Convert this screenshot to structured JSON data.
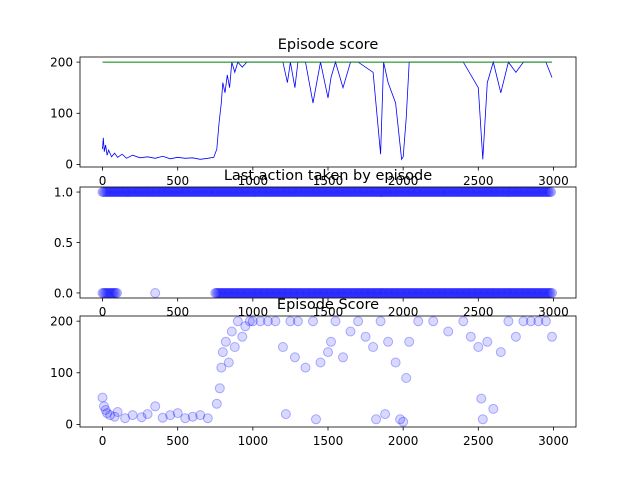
{
  "chart_data": [
    {
      "type": "line",
      "title": "Episode score",
      "xlabel": "",
      "ylabel": "",
      "xlim": [
        -150,
        3150
      ],
      "ylim": [
        -5,
        210
      ],
      "xticks": [
        0,
        500,
        1000,
        1500,
        2000,
        2500,
        3000
      ],
      "yticks": [
        0,
        100,
        200
      ],
      "grid": false,
      "series": [
        {
          "color": "#0000ff",
          "points": [
            [
              0,
              30
            ],
            [
              5,
              52
            ],
            [
              12,
              25
            ],
            [
              20,
              38
            ],
            [
              30,
              18
            ],
            [
              40,
              28
            ],
            [
              60,
              15
            ],
            [
              80,
              22
            ],
            [
              100,
              14
            ],
            [
              130,
              20
            ],
            [
              160,
              12
            ],
            [
              200,
              18
            ],
            [
              250,
              13
            ],
            [
              300,
              15
            ],
            [
              350,
              12
            ],
            [
              400,
              16
            ],
            [
              450,
              11
            ],
            [
              500,
              14
            ],
            [
              550,
              12
            ],
            [
              600,
              13
            ],
            [
              650,
              10
            ],
            [
              700,
              12
            ],
            [
              740,
              14
            ],
            [
              760,
              30
            ],
            [
              775,
              80
            ],
            [
              790,
              120
            ],
            [
              800,
              160
            ],
            [
              815,
              140
            ],
            [
              830,
              175
            ],
            [
              845,
              150
            ],
            [
              860,
              200
            ],
            [
              880,
              180
            ],
            [
              900,
              200
            ],
            [
              930,
              190
            ],
            [
              960,
              200
            ],
            [
              1000,
              200
            ],
            [
              1100,
              200
            ],
            [
              1200,
              200
            ],
            [
              1230,
              160
            ],
            [
              1250,
              200
            ],
            [
              1280,
              150
            ],
            [
              1300,
              200
            ],
            [
              1350,
              200
            ],
            [
              1400,
              120
            ],
            [
              1450,
              200
            ],
            [
              1500,
              130
            ],
            [
              1520,
              170
            ],
            [
              1550,
              200
            ],
            [
              1600,
              150
            ],
            [
              1650,
              200
            ],
            [
              1700,
              200
            ],
            [
              1800,
              180
            ],
            [
              1850,
              20
            ],
            [
              1870,
              200
            ],
            [
              1900,
              160
            ],
            [
              1950,
              120
            ],
            [
              1990,
              10
            ],
            [
              2000,
              15
            ],
            [
              2020,
              90
            ],
            [
              2040,
              200
            ],
            [
              2100,
              200
            ],
            [
              2200,
              200
            ],
            [
              2300,
              200
            ],
            [
              2400,
              200
            ],
            [
              2500,
              150
            ],
            [
              2530,
              10
            ],
            [
              2560,
              160
            ],
            [
              2600,
              200
            ],
            [
              2650,
              140
            ],
            [
              2700,
              200
            ],
            [
              2750,
              180
            ],
            [
              2800,
              200
            ],
            [
              2850,
              200
            ],
            [
              2900,
              200
            ],
            [
              2950,
              200
            ],
            [
              2990,
              170
            ]
          ]
        }
      ],
      "reference_line": {
        "color": "#008000",
        "y": 200,
        "x_start": 0,
        "x_end": 2990
      }
    },
    {
      "type": "scatter",
      "title": "Last action taken by episode",
      "xlabel": "",
      "ylabel": "",
      "xlim": [
        -150,
        3150
      ],
      "ylim": [
        -0.05,
        1.05
      ],
      "xticks": [
        0,
        500,
        1000,
        1500,
        2000,
        2500,
        3000
      ],
      "yticks": [
        0.0,
        0.5,
        1.0
      ],
      "ytick_labels": [
        "0.0",
        "0.5",
        "1.0"
      ],
      "grid": false,
      "marker_color": "#0000ff",
      "marker_opacity": 0.15,
      "series": [
        {
          "y": 1.0,
          "x_ranges": [
            [
              0,
              2990
            ]
          ]
        },
        {
          "y": 0.0,
          "x_ranges": [
            [
              0,
              100
            ],
            [
              750,
              2990
            ]
          ],
          "x_points": [
            350
          ]
        }
      ]
    },
    {
      "type": "scatter",
      "title": "Episode Score",
      "xlabel": "",
      "ylabel": "",
      "xlim": [
        -150,
        3150
      ],
      "ylim": [
        -5,
        210
      ],
      "xticks": [
        0,
        500,
        1000,
        1500,
        2000,
        2500,
        3000
      ],
      "yticks": [
        0,
        100,
        200
      ],
      "grid": false,
      "marker_color": "#0000ff",
      "marker_opacity": 0.15,
      "series": [
        {
          "points": [
            [
              0,
              52
            ],
            [
              10,
              35
            ],
            [
              20,
              28
            ],
            [
              30,
              22
            ],
            [
              50,
              18
            ],
            [
              80,
              15
            ],
            [
              100,
              24
            ],
            [
              150,
              12
            ],
            [
              200,
              18
            ],
            [
              260,
              14
            ],
            [
              300,
              20
            ],
            [
              350,
              35
            ],
            [
              400,
              13
            ],
            [
              450,
              18
            ],
            [
              500,
              22
            ],
            [
              550,
              12
            ],
            [
              600,
              15
            ],
            [
              650,
              18
            ],
            [
              700,
              12
            ],
            [
              760,
              40
            ],
            [
              780,
              70
            ],
            [
              790,
              110
            ],
            [
              800,
              140
            ],
            [
              820,
              160
            ],
            [
              840,
              120
            ],
            [
              860,
              180
            ],
            [
              880,
              150
            ],
            [
              900,
              200
            ],
            [
              930,
              170
            ],
            [
              950,
              190
            ],
            [
              980,
              200
            ],
            [
              1000,
              200
            ],
            [
              1050,
              200
            ],
            [
              1100,
              200
            ],
            [
              1150,
              200
            ],
            [
              1200,
              150
            ],
            [
              1220,
              20
            ],
            [
              1250,
              200
            ],
            [
              1280,
              130
            ],
            [
              1300,
              200
            ],
            [
              1350,
              110
            ],
            [
              1400,
              200
            ],
            [
              1420,
              10
            ],
            [
              1450,
              120
            ],
            [
              1500,
              140
            ],
            [
              1520,
              160
            ],
            [
              1550,
              200
            ],
            [
              1600,
              130
            ],
            [
              1650,
              180
            ],
            [
              1700,
              200
            ],
            [
              1750,
              170
            ],
            [
              1800,
              150
            ],
            [
              1820,
              10
            ],
            [
              1850,
              200
            ],
            [
              1880,
              20
            ],
            [
              1900,
              160
            ],
            [
              1950,
              120
            ],
            [
              1980,
              10
            ],
            [
              2000,
              5
            ],
            [
              2020,
              90
            ],
            [
              2040,
              160
            ],
            [
              2100,
              200
            ],
            [
              2200,
              200
            ],
            [
              2300,
              180
            ],
            [
              2400,
              200
            ],
            [
              2450,
              170
            ],
            [
              2500,
              150
            ],
            [
              2520,
              50
            ],
            [
              2530,
              10
            ],
            [
              2560,
              160
            ],
            [
              2600,
              30
            ],
            [
              2650,
              140
            ],
            [
              2700,
              200
            ],
            [
              2750,
              170
            ],
            [
              2800,
              200
            ],
            [
              2850,
              200
            ],
            [
              2900,
              200
            ],
            [
              2950,
              200
            ],
            [
              2990,
              170
            ]
          ]
        }
      ]
    }
  ]
}
